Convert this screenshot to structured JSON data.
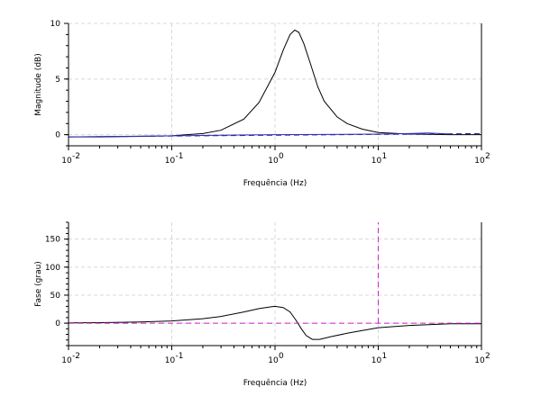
{
  "chart_data": [
    {
      "type": "line",
      "ylabel": "Magnitude (dB)",
      "xlabel": "Frequência (Hz)",
      "xscale": "log",
      "xlim": [
        0.01,
        100
      ],
      "ylim": [
        -1,
        10
      ],
      "yticks": [
        0,
        5,
        10
      ],
      "grid": true,
      "series": [
        {
          "color": "#000000",
          "style": "solid",
          "x": [
            0.01,
            0.02,
            0.05,
            0.1,
            0.2,
            0.3,
            0.5,
            0.7,
            1.0,
            1.2,
            1.4,
            1.55,
            1.7,
            1.9,
            2.2,
            2.6,
            3.0,
            4.0,
            5.0,
            7.0,
            10,
            20,
            50,
            100
          ],
          "y": [
            -0.2,
            -0.2,
            -0.15,
            -0.1,
            0.1,
            0.4,
            1.4,
            2.9,
            5.6,
            7.6,
            9.0,
            9.4,
            9.2,
            8.2,
            6.4,
            4.3,
            3.0,
            1.6,
            1.0,
            0.5,
            0.2,
            0.05,
            0.0,
            0.0
          ]
        },
        {
          "color": "#1f1fa8",
          "style": "dashed",
          "x": [
            0.01,
            100
          ],
          "y": [
            -0.2,
            0.1
          ]
        },
        {
          "color": "#2f2fb8",
          "style": "solid",
          "x": [
            0.01,
            0.1,
            1.0,
            10,
            20,
            30,
            40,
            50
          ],
          "y": [
            -0.2,
            -0.1,
            0.0,
            0.05,
            0.1,
            0.15,
            0.1,
            0.05
          ]
        }
      ]
    },
    {
      "type": "line",
      "ylabel": "Fase (grau)",
      "xlabel": "Frequência (Hz)",
      "xscale": "log",
      "xlim": [
        0.01,
        100
      ],
      "ylim": [
        -40,
        180
      ],
      "yticks": [
        0,
        50,
        100,
        150
      ],
      "grid": true,
      "series": [
        {
          "color": "#000000",
          "style": "solid",
          "x": [
            0.01,
            0.02,
            0.05,
            0.1,
            0.2,
            0.3,
            0.5,
            0.7,
            0.9,
            1.0,
            1.2,
            1.4,
            1.6,
            1.8,
            2.0,
            2.3,
            2.7,
            3.5,
            5.0,
            7.0,
            10,
            20,
            50,
            100
          ],
          "y": [
            0.5,
            1,
            2,
            4,
            8,
            12,
            20,
            26,
            29,
            30,
            28,
            20,
            5,
            -10,
            -22,
            -29,
            -29,
            -24,
            -18,
            -13,
            -8,
            -4,
            -1,
            -1
          ]
        },
        {
          "color": "#cc22cc",
          "style": "dashed",
          "x": [
            0.01,
            100
          ],
          "y": [
            0,
            0
          ]
        },
        {
          "color": "#cc22cc",
          "style": "dashed",
          "x": [
            10,
            10
          ],
          "y": [
            0,
            180
          ]
        }
      ]
    }
  ]
}
